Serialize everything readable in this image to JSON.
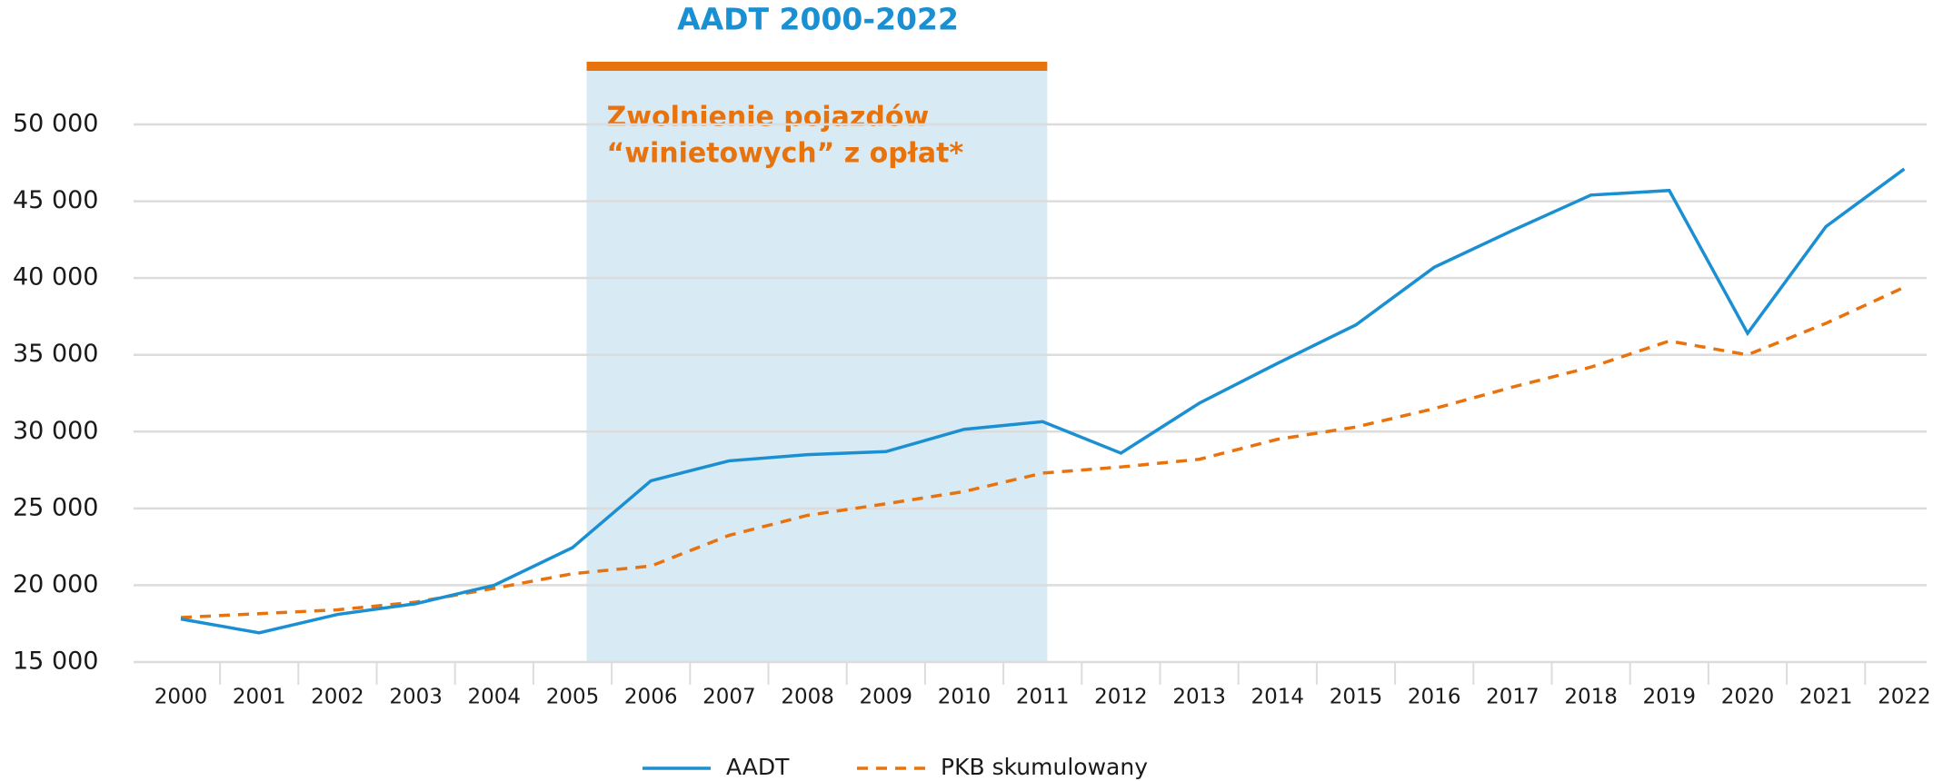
{
  "chart_data": {
    "type": "line",
    "title": "AADT 2000-2022",
    "categories": [
      "2000",
      "2001",
      "2002",
      "2003",
      "2004",
      "2005",
      "2006",
      "2007",
      "2008",
      "2009",
      "2010",
      "2011",
      "2012",
      "2013",
      "2014",
      "2015",
      "2016",
      "2017",
      "2018",
      "2019",
      "2020",
      "2021",
      "2022"
    ],
    "series": [
      {
        "name": "AADT",
        "color": "#1a8fd1",
        "dash": false,
        "values": [
          17800,
          16900,
          18100,
          18800,
          20000,
          22450,
          26800,
          28100,
          28500,
          28700,
          30150,
          30650,
          28600,
          31850,
          34450,
          36950,
          40700,
          43100,
          45400,
          45700,
          36400,
          43350,
          47100
        ]
      },
      {
        "name": "PKB skumulowany",
        "color": "#e8720c",
        "dash": true,
        "values": [
          17900,
          18150,
          18400,
          18900,
          19800,
          20750,
          21250,
          23250,
          24550,
          25300,
          26100,
          27300,
          27700,
          28200,
          29500,
          30300,
          31500,
          32900,
          34200,
          35900,
          35000,
          37050,
          39400
        ]
      }
    ],
    "ylim": [
      15000,
      50000
    ],
    "yticks": [
      {
        "value": 15000,
        "label": "15 000"
      },
      {
        "value": 20000,
        "label": "20 000"
      },
      {
        "value": 25000,
        "label": "25 000"
      },
      {
        "value": 30000,
        "label": "30 000"
      },
      {
        "value": 35000,
        "label": "35 000"
      },
      {
        "value": 40000,
        "label": "40 000"
      },
      {
        "value": 45000,
        "label": "45 000"
      },
      {
        "value": 50000,
        "label": "50 000"
      }
    ],
    "grid": true,
    "legend": "bottom",
    "highlight": {
      "start": "2005",
      "end": "2011",
      "color": "#d8eaf4",
      "bar_color": "#e8720c",
      "label": [
        "Zwolnienie pojazdów",
        "“winietowych” z opłat*"
      ]
    }
  }
}
